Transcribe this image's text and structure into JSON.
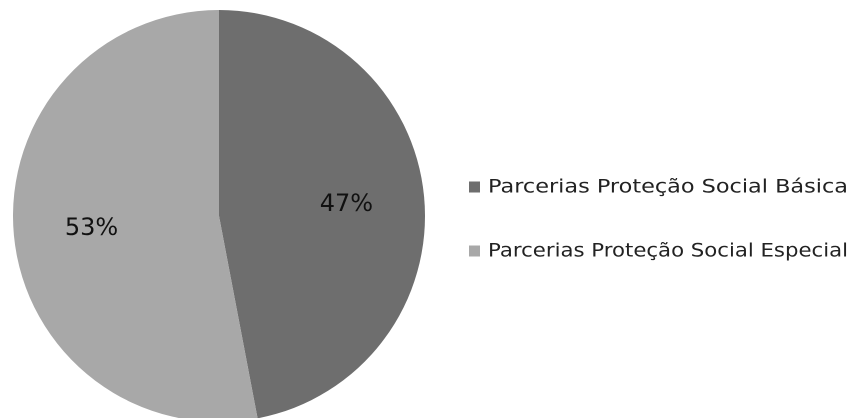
{
  "chart_data": {
    "type": "pie",
    "slices": [
      {
        "label": "Parcerias Proteção Social Básica",
        "value": 47,
        "display": "47%",
        "color": "#6e6e6e"
      },
      {
        "label": "Parcerias Proteção Social Especial",
        "value": 53,
        "display": "53%",
        "color": "#a8a8a8"
      }
    ],
    "start_angle_deg": 0,
    "direction": "clockwise",
    "legend_position": "right"
  }
}
